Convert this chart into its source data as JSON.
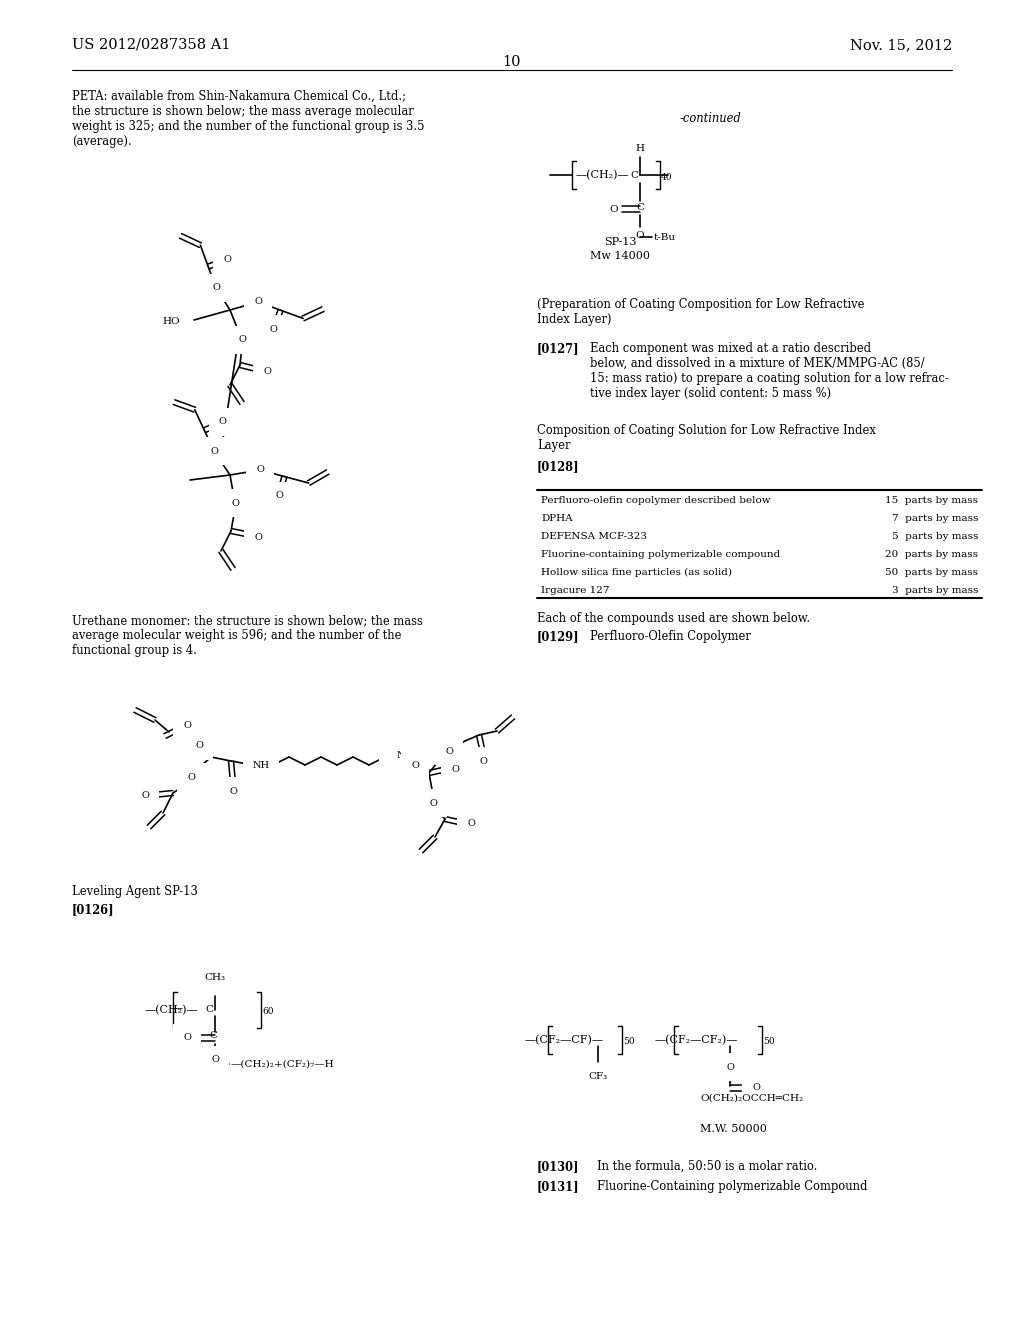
{
  "page_number": "10",
  "left_header": "US 2012/0287358 A1",
  "right_header": "Nov. 15, 2012",
  "peta_text": "PETA: available from Shin-Nakamura Chemical Co., Ltd.;\nthe structure is shown below; the mass average molecular\nweight is 325; and the number of the functional group is 3.5\n(average).",
  "continued_text": "-continued",
  "prep_header": "(Preparation of Coating Composition for Low Refractive\nIndex Layer)",
  "para0127_label": "[0127]",
  "para0127_text": "Each component was mixed at a ratio described\nbelow, and dissolved in a mixture of MEK/MMPG-AC (85/\n15: mass ratio) to prepare a coating solution for a low refrac-\ntive index layer (solid content: 5 mass %)",
  "comp_header": "Composition of Coating Solution for Low Refractive Index\nLayer",
  "para0128_label": "[0128]",
  "each_text": "Each of the compounds used are shown below.",
  "para0129_label": "[0129]",
  "para0129_text": "Perfluoro-Olefin Copolymer",
  "urethane_text": "Urethane monomer: the structure is shown below; the mass\naverage molecular weight is 596; and the number of the\nfunctional group is 4.",
  "leveling_text": "Leveling Agent SP-13",
  "para0126_label": "[0126]",
  "para0130_label": "[0130]",
  "para0130_text": "In the formula, 50:50 is a molar ratio.",
  "para0131_label": "[0131]",
  "para0131_text": "Fluorine-Containing polymerizable Compound",
  "table_rows": [
    [
      "Perfluoro-olefin copolymer described below",
      "15  parts by mass"
    ],
    [
      "DPHA",
      "7  parts by mass"
    ],
    [
      "DEFENSA MCF-323",
      "5  parts by mass"
    ],
    [
      "Fluorine-containing polymerizable compound",
      "20  parts by mass"
    ],
    [
      "Hollow silica fine particles (as solid)",
      "50  parts by mass"
    ],
    [
      "Irgacure 127",
      "3  parts by mass"
    ]
  ],
  "sp13_label": "SP-13",
  "sp13_mw": "Mw 14000",
  "mw50000": "M.W. 50000"
}
